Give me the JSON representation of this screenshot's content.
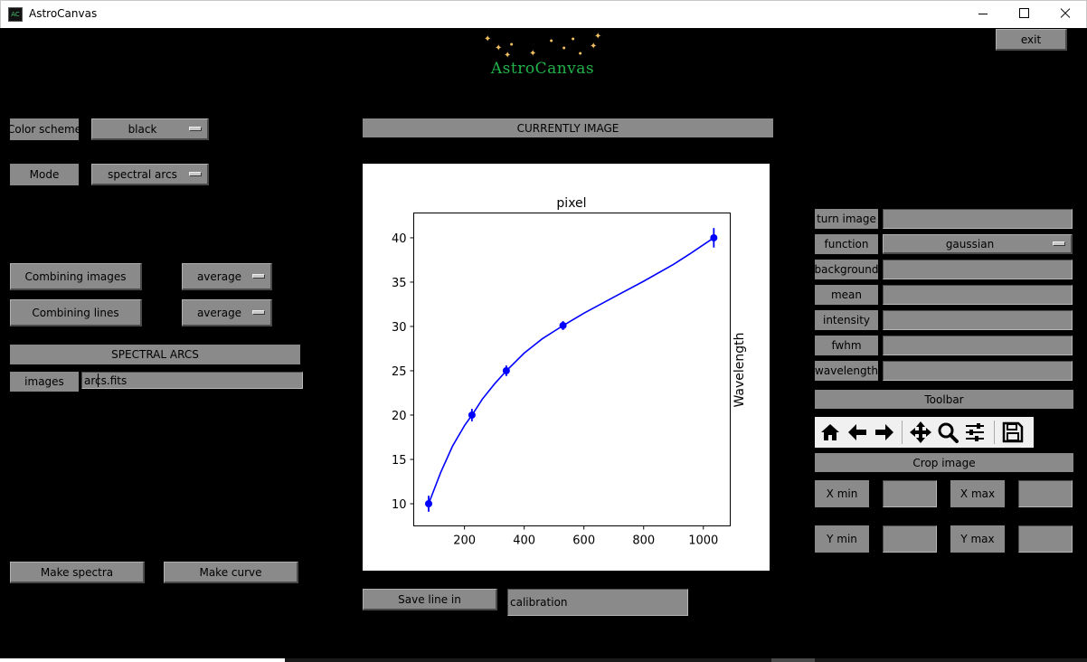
{
  "window": {
    "title": "AstroCanvas",
    "icon": "AC",
    "controls": [
      "minimize-icon",
      "maximize-icon",
      "close-icon"
    ]
  },
  "header": {
    "logo_text": "AstroCanvas",
    "exit_label": "exit"
  },
  "left_panel": {
    "color_scheme_label": "Color scheme",
    "color_scheme_value": "black",
    "mode_label": "Mode",
    "mode_value": "spectral arcs",
    "combining_images_label": "Combining images",
    "combining_images_value": "average",
    "combining_lines_label": "Combining lines",
    "combining_lines_value": "average",
    "section_title": "SPECTRAL ARCS",
    "images_label": "images",
    "images_value": "arcs.fits",
    "make_spectra_label": "Make spectra",
    "make_curve_label": "Make curve"
  },
  "center": {
    "currently_image_label": "CURRENTLY IMAGE",
    "save_line_label": "Save line in",
    "save_line_value": "calibration"
  },
  "right_panel": {
    "fields": [
      {
        "label": "turn image",
        "value": ""
      },
      {
        "label": "function",
        "value": "gaussian",
        "dropdown": true
      },
      {
        "label": "background",
        "value": ""
      },
      {
        "label": "mean",
        "value": ""
      },
      {
        "label": "intensity",
        "value": ""
      },
      {
        "label": "fwhm",
        "value": ""
      },
      {
        "label": "wavelength",
        "value": ""
      }
    ],
    "toolbar_label": "Toolbar",
    "toolbar_icons": [
      "home-icon",
      "back-arrow-icon",
      "forward-arrow-icon",
      "pan-icon",
      "zoom-icon",
      "configure-subplots-icon",
      "save-icon"
    ],
    "crop_label": "Crop image",
    "xmin_label": "X min",
    "xmax_label": "X max",
    "ymin_label": "Y min",
    "ymax_label": "Y max",
    "xmin_value": "",
    "xmax_value": "",
    "ymin_value": "",
    "ymax_value": ""
  },
  "chart_data": {
    "type": "scatter",
    "title": "pixel",
    "xlabel": "",
    "ylabel": "Wavelength",
    "ylabel_position": "right",
    "xlim": [
      30,
      1090
    ],
    "ylim": [
      7.5,
      42.8
    ],
    "xticks": [
      200,
      400,
      600,
      800,
      1000
    ],
    "yticks": [
      10,
      15,
      20,
      25,
      30,
      35,
      40
    ],
    "grid": false,
    "series": [
      {
        "color": "#0000ff",
        "points": [
          {
            "x": 80,
            "y": 10,
            "err": 0.9
          },
          {
            "x": 225,
            "y": 20,
            "err": 0.7
          },
          {
            "x": 340,
            "y": 25,
            "err": 0.6
          },
          {
            "x": 530,
            "y": 30.1,
            "err": 0.5
          },
          {
            "x": 1035,
            "y": 40,
            "err": 1.1
          }
        ],
        "fit_curve": [
          [
            80,
            10
          ],
          [
            120,
            13.5
          ],
          [
            160,
            16.5
          ],
          [
            200,
            18.8
          ],
          [
            225,
            20
          ],
          [
            260,
            21.8
          ],
          [
            300,
            23.5
          ],
          [
            340,
            25
          ],
          [
            400,
            27
          ],
          [
            460,
            28.6
          ],
          [
            530,
            30.1
          ],
          [
            600,
            31.5
          ],
          [
            700,
            33.3
          ],
          [
            800,
            35.1
          ],
          [
            900,
            37
          ],
          [
            960,
            38.3
          ],
          [
            1035,
            40
          ]
        ]
      }
    ]
  }
}
